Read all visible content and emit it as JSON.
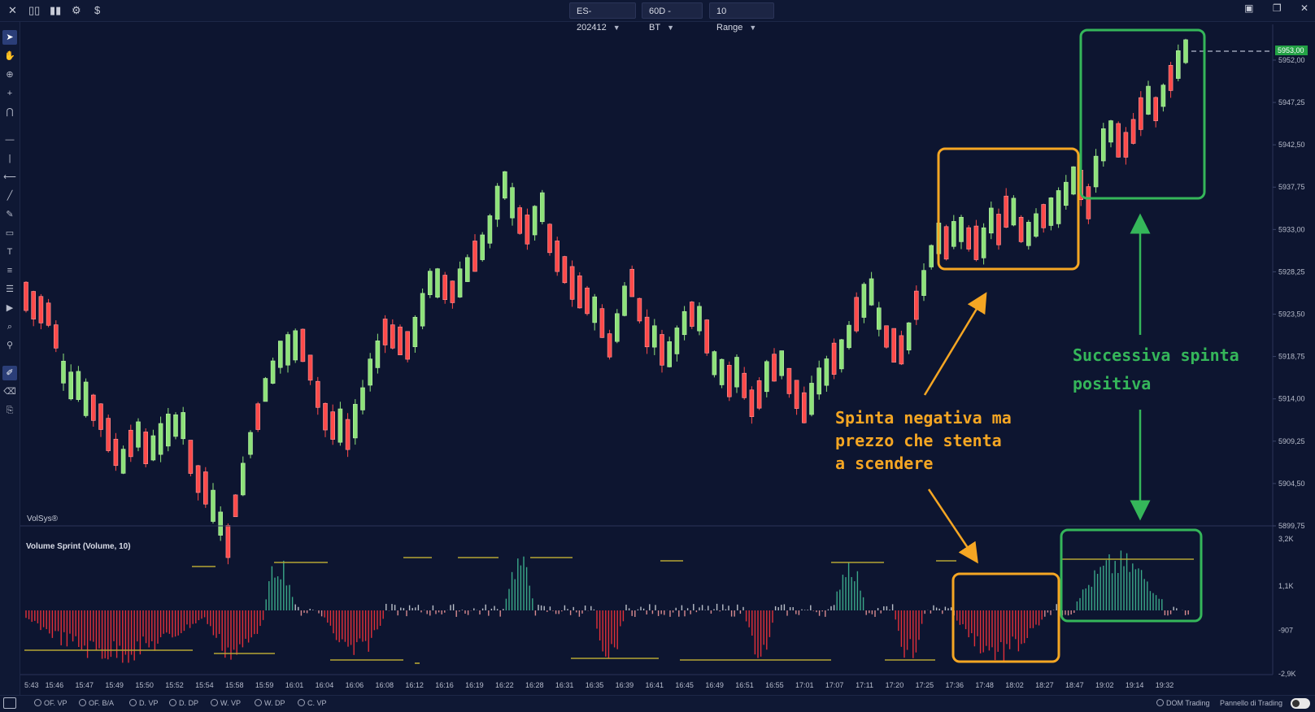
{
  "topbar": {
    "left_icons": [
      "close-icon",
      "columns-icon",
      "bar-chart-icon",
      "gear-icon",
      "dollar-icon"
    ],
    "symbol": "ES-202412",
    "timeframe": "60D - BT",
    "range": "10 Range"
  },
  "toolbar_icons": [
    "cursor-icon",
    "hand-icon",
    "zoom-icon",
    "crosshair-icon",
    "magnet-icon",
    "horizontal-line-icon",
    "vertical-line-icon",
    "ray-icon",
    "trend-line-icon",
    "pencil-icon",
    "rectangle-icon",
    "text-icon",
    "list-icon",
    "menu-icon",
    "play-icon",
    "scan-icon",
    "search-settings-icon",
    "brush-icon",
    "eraser-icon",
    "stamp-icon"
  ],
  "price_axis": {
    "labels": [
      "5952,00",
      "5947,25",
      "5942,50",
      "5937,75",
      "5933,00",
      "5928,25",
      "5923,50",
      "5918,75",
      "5914,00",
      "5909,25",
      "5904,50",
      "5899,75"
    ],
    "current": "5953,00"
  },
  "volume_axis": {
    "labels": [
      "3,2K",
      "1,1K",
      "-907",
      "-2,9K"
    ]
  },
  "time_axis": {
    "labels": [
      "5:43",
      "15:46",
      "15:47",
      "15:49",
      "15:50",
      "15:52",
      "15:54",
      "15:58",
      "15:59",
      "16:01",
      "16:04",
      "16:06",
      "16:08",
      "16:12",
      "16:16",
      "16:19",
      "16:22",
      "16:28",
      "16:31",
      "16:35",
      "16:39",
      "16:41",
      "16:45",
      "16:49",
      "16:51",
      "16:55",
      "17:01",
      "17:07",
      "17:11",
      "17:20",
      "17:25",
      "17:36",
      "17:48",
      "18:02",
      "18:27",
      "18:47",
      "19:02",
      "19:14",
      "19:32"
    ]
  },
  "watermark": "VolSys®",
  "indicator_title": "Volume Sprint (Volume, 10)",
  "annotations": {
    "orange_text": [
      "Spinta negativa ma",
      "prezzo che stenta",
      "a scendere"
    ],
    "green_text": [
      "Successiva spinta",
      "positiva"
    ]
  },
  "colors": {
    "background": "#0d1530",
    "bull": "#8ee27a",
    "bear": "#ff4a4a",
    "orange": "#f5a623",
    "green": "#35b65a"
  },
  "chart_data": {
    "type": "candlestick",
    "price_path": [
      5925.5,
      5924.5,
      5924,
      5923.5,
      5921,
      5917,
      5915.5,
      5915.5,
      5914,
      5913,
      5912,
      5910,
      5908,
      5907,
      5909,
      5910,
      5908.5,
      5908.5,
      5909.5,
      5910.5,
      5911,
      5911,
      5907.5,
      5905,
      5904,
      5902,
      5900,
      5898,
      5902,
      5905,
      5909,
      5912,
      5915,
      5917,
      5919,
      5919.5,
      5920,
      5920,
      5917.5,
      5914.5,
      5912,
      5911,
      5911,
      5910,
      5911.5,
      5914,
      5917,
      5919,
      5921.5,
      5921,
      5920.5,
      5920,
      5921.5,
      5924,
      5927,
      5927,
      5926.5,
      5926,
      5927,
      5928.5,
      5930,
      5931,
      5933,
      5936,
      5938,
      5936,
      5934,
      5933,
      5934,
      5935.5,
      5932,
      5930,
      5928.5,
      5927,
      5926,
      5925,
      5924,
      5922.5,
      5920,
      5922,
      5925,
      5927,
      5924,
      5921.5,
      5921,
      5919.5,
      5919,
      5920.5,
      5922.5,
      5923.5,
      5923,
      5921,
      5918,
      5917,
      5916,
      5917,
      5915.5,
      5913.5,
      5914.5,
      5916.5,
      5917.5,
      5918,
      5916,
      5914.5,
      5913,
      5914,
      5916,
      5917,
      5918.5,
      5919,
      5921,
      5923.5,
      5925,
      5926,
      5923,
      5921,
      5920,
      5919.5,
      5921,
      5924.5,
      5927,
      5930,
      5932,
      5931.5,
      5932.5,
      5933,
      5932,
      5931.5,
      5931.5,
      5934,
      5933,
      5935,
      5935,
      5933,
      5932.5,
      5933.5,
      5934.5,
      5935,
      5935.5,
      5937,
      5938.5,
      5938,
      5936,
      5939.5,
      5942.5,
      5944,
      5943,
      5942.5,
      5944,
      5946,
      5947.5,
      5946.5,
      5948,
      5950,
      5951.5,
      5953
    ],
    "volume_zones": [
      {
        "start": "15:43",
        "end": "15:54",
        "direction": "negative"
      },
      {
        "start": "15:54",
        "end": "15:59",
        "direction": "negative"
      },
      {
        "start": "15:59",
        "end": "16:01",
        "direction": "positive"
      },
      {
        "start": "16:04",
        "end": "16:08",
        "direction": "negative"
      },
      {
        "start": "16:22",
        "end": "16:28",
        "direction": "positive"
      },
      {
        "start": "16:35",
        "end": "16:39",
        "direction": "negative"
      },
      {
        "start": "16:51",
        "end": "16:55",
        "direction": "negative"
      },
      {
        "start": "17:07",
        "end": "17:11",
        "direction": "positive"
      },
      {
        "start": "17:20",
        "end": "17:25",
        "direction": "negative"
      },
      {
        "start": "17:36",
        "end": "18:27",
        "direction": "negative"
      },
      {
        "start": "18:47",
        "end": "19:32",
        "direction": "positive"
      }
    ],
    "xlabel": "",
    "ylabel": ""
  },
  "bottombar": {
    "items": [
      "OF. VP",
      "OF. B/A",
      "D. VP",
      "D. DP",
      "W. VP",
      "W. DP",
      "C. VP"
    ],
    "dom": "DOM Trading",
    "panel": "Pannello di Trading"
  },
  "window_controls": [
    "maximize-icon",
    "restore-icon",
    "close-window-icon"
  ]
}
